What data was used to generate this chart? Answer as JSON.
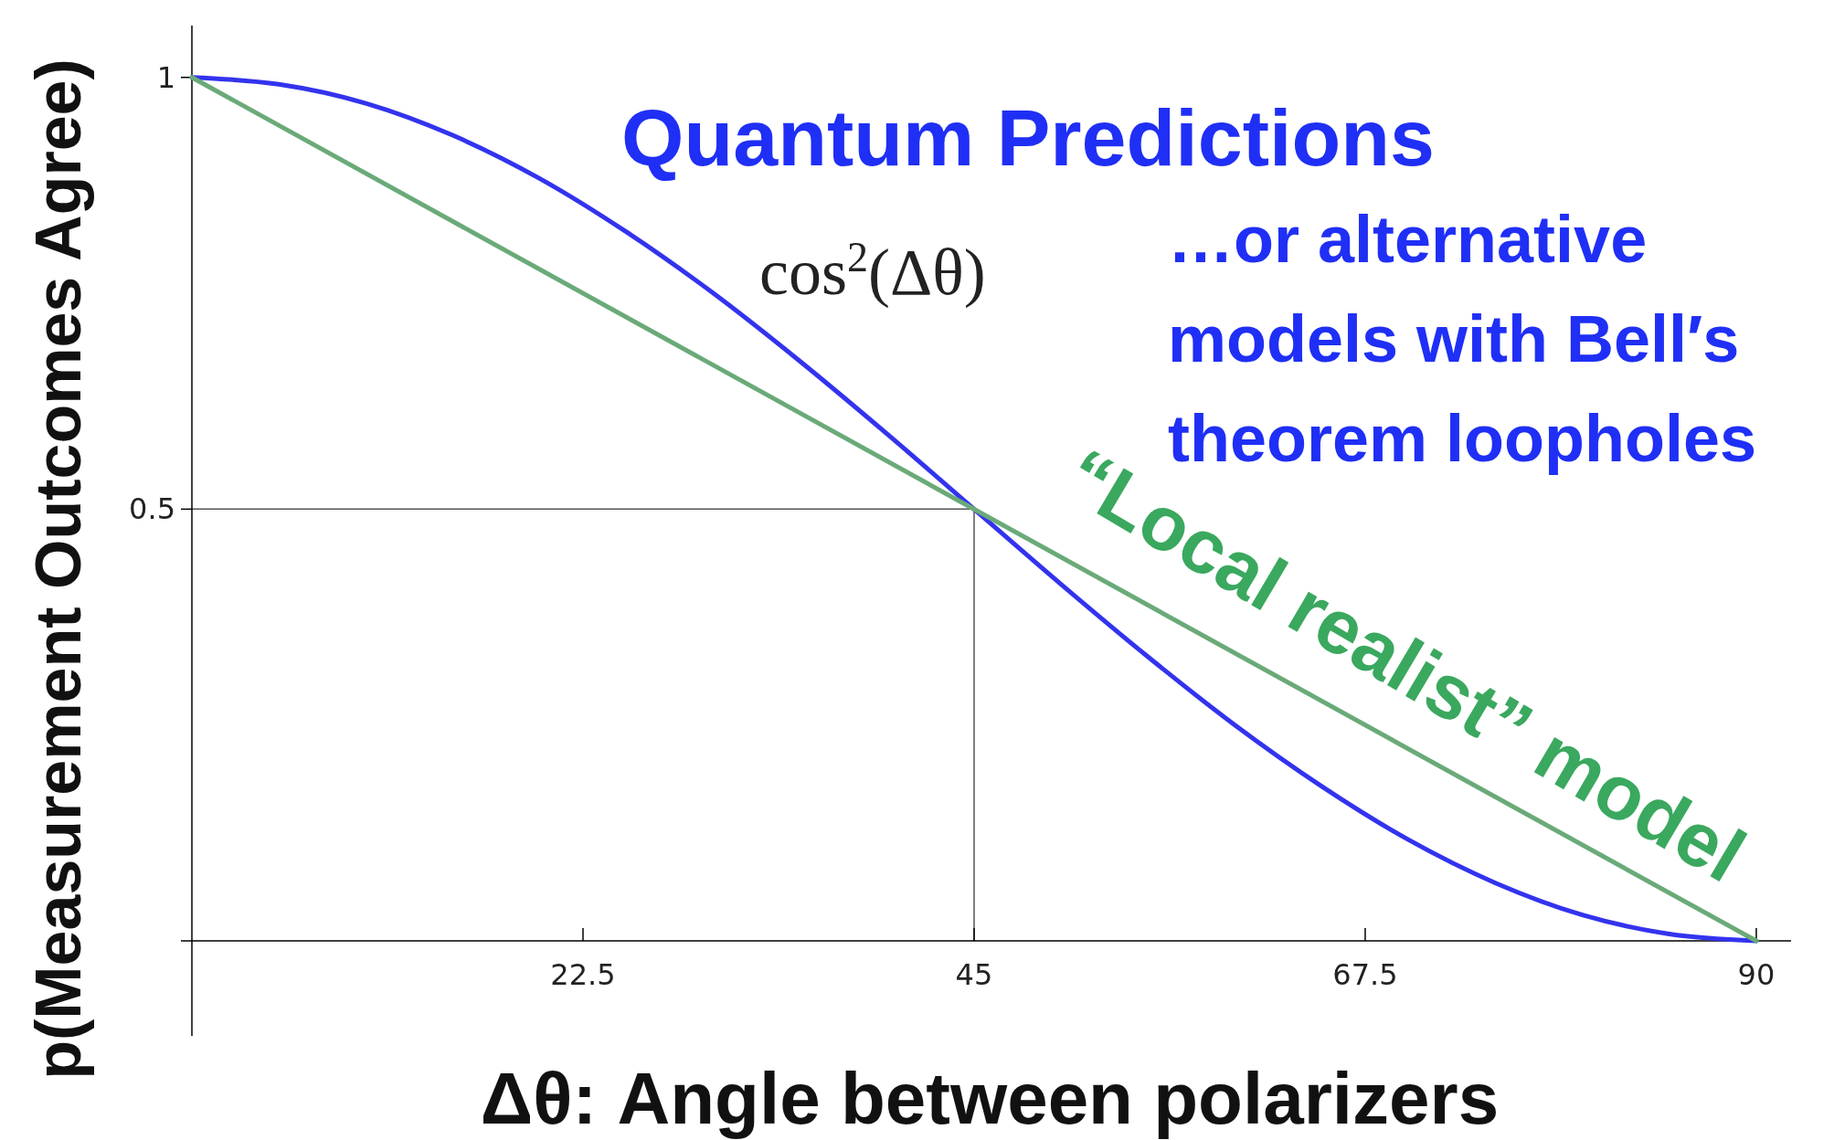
{
  "chart_data": {
    "type": "line",
    "xlabel": "Δθ:  Angle between polarizers",
    "ylabel": "p(Measurement Outcomes Agree)",
    "annotations": [
      "cos$^{2}$(Δθ)",
      "…or alternative models with Bell′s theorem loopholes"
    ],
    "series": [
      {
        "name": "Quantum Predictions",
        "color": "#3333ee",
        "x": [
          0,
          5,
          10,
          15,
          20,
          25,
          30,
          35,
          40,
          45,
          50,
          55,
          60,
          65,
          70,
          75,
          80,
          85,
          90
        ],
        "values": [
          1,
          0.992,
          0.97,
          0.933,
          0.883,
          0.821,
          0.75,
          0.671,
          0.587,
          0.5,
          0.413,
          0.329,
          0.25,
          0.179,
          0.117,
          0.067,
          0.03,
          0.008,
          0
        ]
      },
      {
        "name": "“Local realist” model",
        "color": "#6aaa78",
        "x": [
          0,
          90
        ],
        "values": [
          1,
          0
        ]
      }
    ],
    "xlim": [
      0,
      92
    ],
    "ylim": [
      -0.11,
      1.06
    ],
    "xticks": [
      22.5,
      45,
      67.5,
      90
    ],
    "yticks": [
      {
        "value": 0,
        "label": null
      },
      0.5,
      1
    ],
    "ref_lines": [
      {
        "axis": "x",
        "value": 45,
        "color": "#555555"
      },
      {
        "axis": "y",
        "value": 0.5,
        "color": "#555555"
      }
    ],
    "grid": false,
    "marker": "none",
    "line_style": "solid"
  }
}
